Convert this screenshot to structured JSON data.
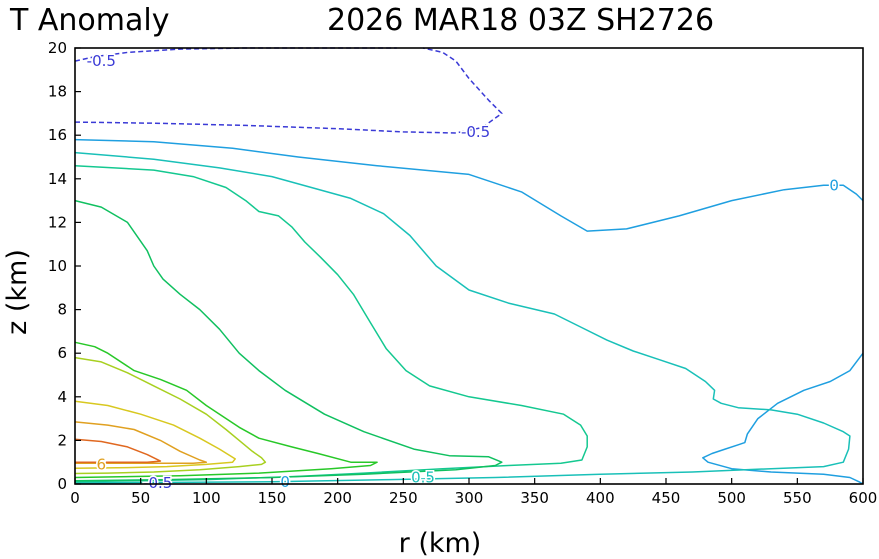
{
  "chart_data": {
    "type": "contour",
    "title_left": "T Anomaly",
    "title_right": "2026 MAR18 03Z   SH2726",
    "xlabel": "r (km)",
    "ylabel": "z (km)",
    "xlim": [
      0,
      600
    ],
    "ylim": [
      0,
      20
    ],
    "x_ticks": [
      "0",
      "50",
      "100",
      "150",
      "200",
      "250",
      "300",
      "350",
      "400",
      "450",
      "500",
      "550",
      "600"
    ],
    "y_ticks": [
      "0",
      "2",
      "4",
      "6",
      "8",
      "10",
      "12",
      "14",
      "16",
      "18",
      "20"
    ],
    "contour_labels": [
      "-0.5",
      "-0.5",
      "0",
      "0.5",
      "6",
      "0",
      "-0.5"
    ],
    "colors": {
      "neg": "#3a3ad6",
      "zero": "#1f9fe0",
      "c05": "#19c0b8",
      "c1": "#14c890",
      "c2": "#10c060",
      "c3": "#28c828",
      "c4": "#a8d020",
      "c5": "#d8c820",
      "c6": "#e0a020",
      "c7": "#e06820",
      "axis": "#000000"
    },
    "contours": [
      {
        "level": -0.5,
        "color_key": "neg",
        "dashed": true,
        "points": [
          [
            0,
            19.4
          ],
          [
            15,
            19.6
          ],
          [
            40,
            19.8
          ],
          [
            80,
            19.95
          ],
          [
            130,
            20
          ],
          [
            200,
            20
          ],
          [
            245,
            20
          ]
        ]
      },
      {
        "level": -0.5,
        "color_key": "neg",
        "dashed": true,
        "points": [
          [
            0,
            16.6
          ],
          [
            60,
            16.55
          ],
          [
            130,
            16.45
          ],
          [
            200,
            16.3
          ],
          [
            250,
            16.15
          ],
          [
            290,
            16.1
          ],
          [
            310,
            16.35
          ],
          [
            325,
            17
          ],
          [
            315,
            17.6
          ],
          [
            300,
            18.6
          ],
          [
            290,
            19.4
          ],
          [
            280,
            19.8
          ],
          [
            265,
            20
          ]
        ]
      },
      {
        "level": 0,
        "color_key": "zero",
        "dashed": false,
        "points": [
          [
            0,
            15.8
          ],
          [
            60,
            15.7
          ],
          [
            120,
            15.4
          ],
          [
            170,
            15
          ],
          [
            230,
            14.6
          ],
          [
            300,
            14.2
          ],
          [
            340,
            13.4
          ],
          [
            370,
            12.3
          ],
          [
            390,
            11.6
          ],
          [
            420,
            11.7
          ],
          [
            460,
            12.3
          ],
          [
            500,
            13
          ],
          [
            540,
            13.5
          ],
          [
            570,
            13.7
          ],
          [
            585,
            13.7
          ],
          [
            595,
            13.3
          ],
          [
            600,
            13.0
          ]
        ]
      },
      {
        "level": 0,
        "color_key": "zero",
        "dashed": false,
        "points": [
          [
            600,
            6.0
          ],
          [
            590,
            5.2
          ],
          [
            575,
            4.7
          ],
          [
            555,
            4.3
          ],
          [
            535,
            3.7
          ],
          [
            520,
            3.0
          ],
          [
            512,
            2.3
          ],
          [
            510,
            1.9
          ],
          [
            505,
            1.8
          ],
          [
            495,
            1.6
          ],
          [
            485,
            1.4
          ],
          [
            478,
            1.2
          ],
          [
            482,
            1.0
          ],
          [
            500,
            0.7
          ],
          [
            530,
            0.55
          ],
          [
            570,
            0.45
          ],
          [
            590,
            0.3
          ],
          [
            597,
            0.1
          ],
          [
            600,
            0
          ]
        ]
      },
      {
        "level": 0.5,
        "color_key": "c05",
        "dashed": false,
        "points": [
          [
            0,
            15.2
          ],
          [
            60,
            14.9
          ],
          [
            110,
            14.5
          ],
          [
            150,
            14.1
          ],
          [
            180,
            13.6
          ],
          [
            210,
            13.1
          ],
          [
            235,
            12.4
          ],
          [
            255,
            11.4
          ],
          [
            275,
            10
          ],
          [
            300,
            8.9
          ],
          [
            330,
            8.3
          ],
          [
            365,
            7.8
          ],
          [
            385,
            7.2
          ],
          [
            405,
            6.6
          ],
          [
            425,
            6.1
          ],
          [
            445,
            5.7
          ],
          [
            465,
            5.3
          ],
          [
            480,
            4.7
          ],
          [
            487,
            4.3
          ],
          [
            486,
            3.9
          ],
          [
            492,
            3.7
          ],
          [
            505,
            3.5
          ],
          [
            530,
            3.4
          ],
          [
            550,
            3.2
          ],
          [
            570,
            2.8
          ],
          [
            585,
            2.4
          ],
          [
            590,
            2.2
          ],
          [
            589,
            1.6
          ],
          [
            585,
            1.0
          ],
          [
            570,
            0.8
          ],
          [
            530,
            0.7
          ],
          [
            470,
            0.55
          ],
          [
            400,
            0.45
          ],
          [
            320,
            0.3
          ],
          [
            240,
            0.2
          ],
          [
            150,
            0.1
          ],
          [
            0,
            0.05
          ]
        ]
      },
      {
        "level": 1,
        "color_key": "c1",
        "dashed": false,
        "points": [
          [
            0,
            14.6
          ],
          [
            60,
            14.4
          ],
          [
            90,
            14.1
          ],
          [
            115,
            13.6
          ],
          [
            130,
            13
          ],
          [
            140,
            12.5
          ],
          [
            155,
            12.3
          ],
          [
            165,
            11.8
          ],
          [
            175,
            11.1
          ],
          [
            187,
            10.4
          ],
          [
            200,
            9.6
          ],
          [
            212,
            8.7
          ],
          [
            225,
            7.4
          ],
          [
            237,
            6.2
          ],
          [
            252,
            5.2
          ],
          [
            270,
            4.5
          ],
          [
            300,
            4.0
          ],
          [
            340,
            3.6
          ],
          [
            372,
            3.2
          ],
          [
            385,
            2.7
          ],
          [
            390,
            2.2
          ],
          [
            390,
            1.7
          ],
          [
            386,
            1.1
          ],
          [
            370,
            0.95
          ],
          [
            330,
            0.85
          ],
          [
            280,
            0.7
          ],
          [
            220,
            0.5
          ],
          [
            170,
            0.35
          ],
          [
            100,
            0.2
          ],
          [
            0,
            0.1
          ]
        ]
      },
      {
        "level": 2,
        "color_key": "c2",
        "dashed": false,
        "points": [
          [
            0,
            13.0
          ],
          [
            20,
            12.7
          ],
          [
            40,
            12.0
          ],
          [
            55,
            10.7
          ],
          [
            60,
            10.0
          ],
          [
            67,
            9.4
          ],
          [
            80,
            8.7
          ],
          [
            95,
            8.0
          ],
          [
            110,
            7.1
          ],
          [
            125,
            6.0
          ],
          [
            140,
            5.2
          ],
          [
            160,
            4.3
          ],
          [
            190,
            3.2
          ],
          [
            220,
            2.4
          ],
          [
            258,
            1.6
          ],
          [
            285,
            1.3
          ],
          [
            315,
            1.25
          ],
          [
            325,
            1.0
          ],
          [
            320,
            0.85
          ],
          [
            290,
            0.65
          ],
          [
            220,
            0.45
          ],
          [
            150,
            0.3
          ],
          [
            70,
            0.2
          ],
          [
            0,
            0.15
          ]
        ]
      },
      {
        "level": 3,
        "color_key": "c3",
        "dashed": false,
        "points": [
          [
            0,
            6.5
          ],
          [
            15,
            6.3
          ],
          [
            25,
            6.0
          ],
          [
            45,
            5.2
          ],
          [
            65,
            4.8
          ],
          [
            85,
            4.3
          ],
          [
            100,
            3.6
          ],
          [
            125,
            2.6
          ],
          [
            140,
            2.1
          ],
          [
            165,
            1.7
          ],
          [
            185,
            1.4
          ],
          [
            210,
            1.0
          ],
          [
            230,
            1.0
          ],
          [
            225,
            0.85
          ],
          [
            195,
            0.7
          ],
          [
            140,
            0.5
          ],
          [
            80,
            0.38
          ],
          [
            0,
            0.3
          ]
        ]
      },
      {
        "level": 4,
        "color_key": "c4",
        "dashed": false,
        "points": [
          [
            0,
            5.8
          ],
          [
            20,
            5.6
          ],
          [
            40,
            5.1
          ],
          [
            60,
            4.5
          ],
          [
            80,
            3.9
          ],
          [
            100,
            3.2
          ],
          [
            115,
            2.5
          ],
          [
            125,
            2.0
          ],
          [
            135,
            1.5
          ],
          [
            142,
            1.2
          ],
          [
            145,
            1.0
          ],
          [
            142,
            0.9
          ],
          [
            125,
            0.8
          ],
          [
            95,
            0.65
          ],
          [
            60,
            0.55
          ],
          [
            25,
            0.5
          ],
          [
            0,
            0.48
          ]
        ]
      },
      {
        "level": 5,
        "color_key": "c5",
        "dashed": false,
        "points": [
          [
            0,
            3.8
          ],
          [
            25,
            3.6
          ],
          [
            50,
            3.2
          ],
          [
            75,
            2.7
          ],
          [
            95,
            2.1
          ],
          [
            110,
            1.6
          ],
          [
            122,
            1.15
          ],
          [
            120,
            1.0
          ],
          [
            100,
            0.9
          ],
          [
            70,
            0.8
          ],
          [
            40,
            0.75
          ],
          [
            0,
            0.72
          ]
        ]
      },
      {
        "level": 6,
        "color_key": "c6",
        "dashed": false,
        "points": [
          [
            0,
            2.85
          ],
          [
            25,
            2.7
          ],
          [
            45,
            2.5
          ],
          [
            65,
            2.0
          ],
          [
            80,
            1.5
          ],
          [
            95,
            1.1
          ],
          [
            100,
            1.0
          ],
          [
            90,
            0.95
          ],
          [
            60,
            0.95
          ],
          [
            35,
            0.95
          ],
          [
            0,
            0.95
          ]
        ]
      },
      {
        "level": 7,
        "color_key": "c7",
        "dashed": false,
        "points": [
          [
            0,
            2.05
          ],
          [
            20,
            1.95
          ],
          [
            40,
            1.7
          ],
          [
            55,
            1.35
          ],
          [
            65,
            1.05
          ],
          [
            55,
            1.0
          ],
          [
            35,
            1.0
          ],
          [
            0,
            1.0
          ]
        ]
      }
    ]
  }
}
